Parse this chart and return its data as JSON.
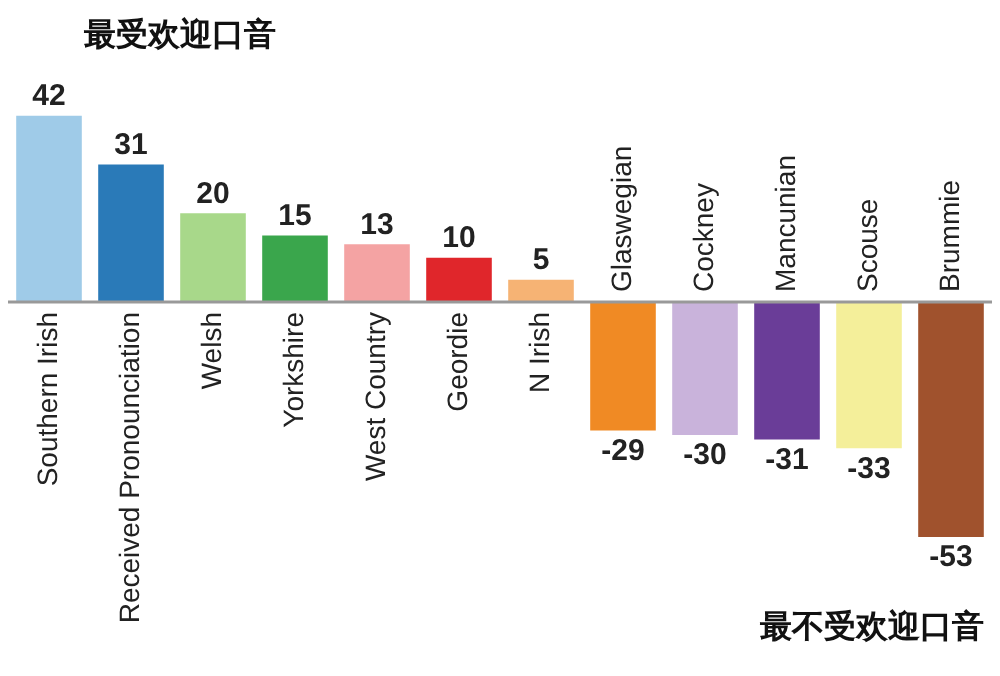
{
  "chart_data": {
    "type": "bar",
    "categories": [
      "Southern Irish",
      "Received Pronounciation",
      "Welsh",
      "Yorkshire",
      "West Country",
      "Geordie",
      "N Irish",
      "Glaswegian",
      "Cockney",
      "Mancunian",
      "Scouse",
      "Brummie"
    ],
    "values": [
      42,
      31,
      20,
      15,
      13,
      10,
      5,
      -29,
      -30,
      -31,
      -33,
      -53
    ],
    "colors": [
      "#9fcbe8",
      "#2a7ab8",
      "#a8d88a",
      "#3aa64c",
      "#f4a3a3",
      "#e0262b",
      "#f6b374",
      "#f08a24",
      "#c9b3db",
      "#6a3d98",
      "#f4ef9a",
      "#a0522d"
    ],
    "tick_labels": "x",
    "data_labels": true,
    "annotations": [
      "最受欢迎口音",
      "最不受欢迎口音"
    ]
  }
}
